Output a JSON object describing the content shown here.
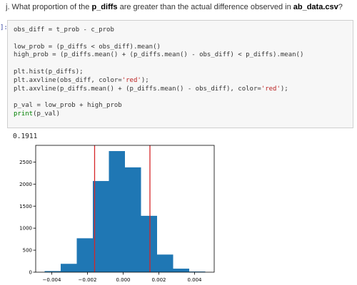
{
  "question": {
    "prefix": "j. What proportion of the ",
    "bold1": "p_diffs",
    "middle": " are greater than the actual difference observed in ",
    "bold2": "ab_data.csv",
    "suffix": "?"
  },
  "cell": {
    "prompt": "]:",
    "lines": [
      "obs_diff = t_prob - c_prob",
      "",
      "low_prob = (p_diffs < obs_diff).mean()",
      "high_prob = (p_diffs.mean() + (p_diffs.mean() - obs_diff) < p_diffs).mean()",
      "",
      "plt.hist(p_diffs);",
      "plt.axvline(obs_diff, color='red');",
      "plt.axvline(p_diffs.mean() + (p_diffs.mean() - obs_diff), color='red');",
      "",
      "p_val = low_prob + high_prob",
      "print(p_val)"
    ]
  },
  "output": {
    "text": "0.1911"
  },
  "colors": {
    "bar": "#1f77b4",
    "vline": "#d62728",
    "cell_bg": "#f7f7f7",
    "prompt": "#303f9f"
  },
  "chart_data": {
    "type": "bar",
    "title": "",
    "xlabel": "",
    "ylabel": "",
    "bin_edges": [
      -0.0044,
      -0.0035,
      -0.0026,
      -0.0017,
      -0.0008,
      0.0001,
      0.001,
      0.0019,
      0.0028,
      0.0037,
      0.0046
    ],
    "values": [
      25,
      190,
      770,
      2070,
      2750,
      2380,
      1280,
      400,
      80,
      15
    ],
    "vlines": [
      -0.0016,
      0.0015
    ],
    "xlim": [
      -0.0049,
      0.0051
    ],
    "ylim": [
      0,
      2880
    ],
    "xticks": [
      -0.004,
      -0.002,
      0.0,
      0.002,
      0.004
    ],
    "xtick_labels": [
      "−0.004",
      "−0.002",
      "0.000",
      "0.002",
      "0.004"
    ],
    "yticks": [
      0,
      500,
      1000,
      1500,
      2000,
      2500
    ],
    "ytick_labels": [
      "0",
      "500",
      "1000",
      "1500",
      "2000",
      "2500"
    ],
    "grid": false
  }
}
